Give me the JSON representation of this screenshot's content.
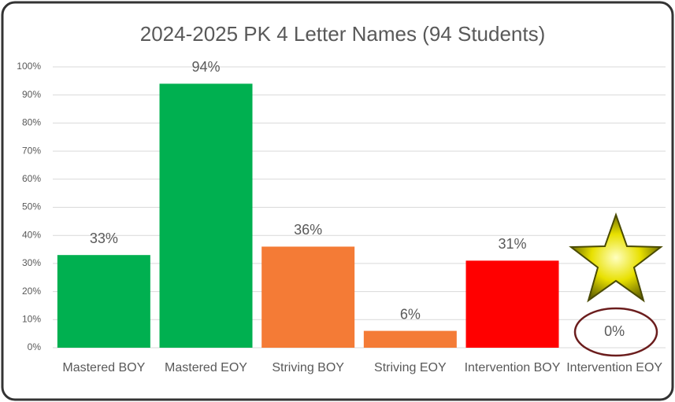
{
  "chart_data": {
    "type": "bar",
    "title": "2024-2025 PK 4 Letter Names (94 Students)",
    "categories": [
      "Mastered BOY",
      "Mastered EOY",
      "Striving BOY",
      "Striving EOY",
      "Intervention BOY",
      "Intervention EOY"
    ],
    "values": [
      33,
      94,
      36,
      6,
      31,
      0
    ],
    "value_labels": [
      "33%",
      "94%",
      "36%",
      "6%",
      "31%",
      "0%"
    ],
    "colors": [
      "#00b050",
      "#00b050",
      "#f47b36",
      "#f47b36",
      "#ff0000",
      "#ff0000"
    ],
    "ylim": [
      0,
      100
    ],
    "yticks": [
      {
        "value": 0,
        "label": "0%"
      },
      {
        "value": 10,
        "label": "10%"
      },
      {
        "value": 20,
        "label": "20%"
      },
      {
        "value": 30,
        "label": "30%"
      },
      {
        "value": 40,
        "label": "40%"
      },
      {
        "value": 50,
        "label": "50%"
      },
      {
        "value": 60,
        "label": "60%"
      },
      {
        "value": 70,
        "label": "70%"
      },
      {
        "value": 80,
        "label": "80%"
      },
      {
        "value": 90,
        "label": "90%"
      },
      {
        "value": 100,
        "label": "100%"
      }
    ],
    "grid": true
  }
}
